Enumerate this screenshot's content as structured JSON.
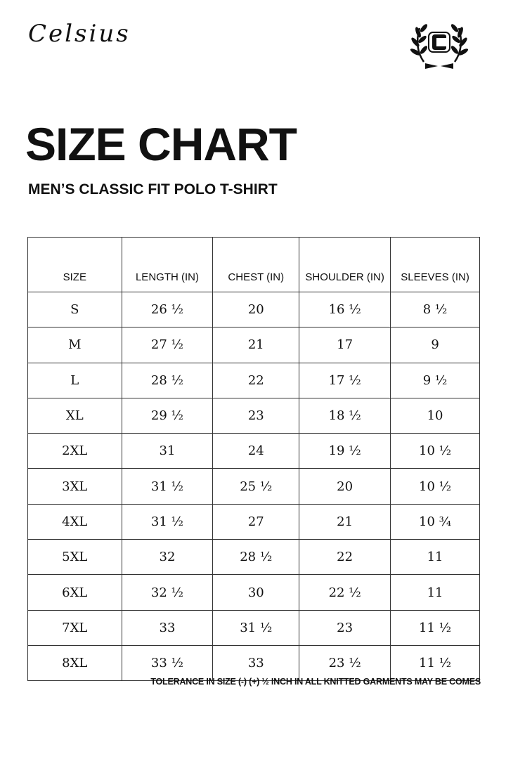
{
  "brand": {
    "name": "Celsius",
    "logo_letter": "C"
  },
  "title": "SIZE CHART",
  "subtitle": "MEN’S CLASSIC FIT POLO T-SHIRT",
  "table": {
    "headers": [
      "SIZE",
      "LENGTH (IN)",
      "CHEST (IN)",
      "SHOULDER (IN)",
      "SLEEVES (IN)"
    ],
    "rows": [
      [
        "S",
        "26 ½",
        "20",
        "16 ½",
        "8 ½"
      ],
      [
        "M",
        "27 ½",
        "21",
        "17",
        "9"
      ],
      [
        "L",
        "28 ½",
        "22",
        "17 ½",
        "9 ½"
      ],
      [
        "XL",
        "29 ½",
        "23",
        "18 ½",
        "10"
      ],
      [
        "2XL",
        "31",
        "24",
        "19 ½",
        "10 ½"
      ],
      [
        "3XL",
        "31 ½",
        "25 ½",
        "20",
        "10 ½"
      ],
      [
        "4XL",
        "31 ½",
        "27",
        "21",
        "10 ¾"
      ],
      [
        "5XL",
        "32",
        "28 ½",
        "22",
        "11"
      ],
      [
        "6XL",
        "32 ½",
        "30",
        "22 ½",
        "11"
      ],
      [
        "7XL",
        "33",
        "31 ½",
        "23",
        "11 ½"
      ],
      [
        "8XL",
        "33 ½",
        "33",
        "23 ½",
        "11 ½"
      ]
    ]
  },
  "footer": "TOLERANCE IN SIZE (-) (+) ½ INCH IN ALL KNITTED GARMENTS MAY BE COMES"
}
